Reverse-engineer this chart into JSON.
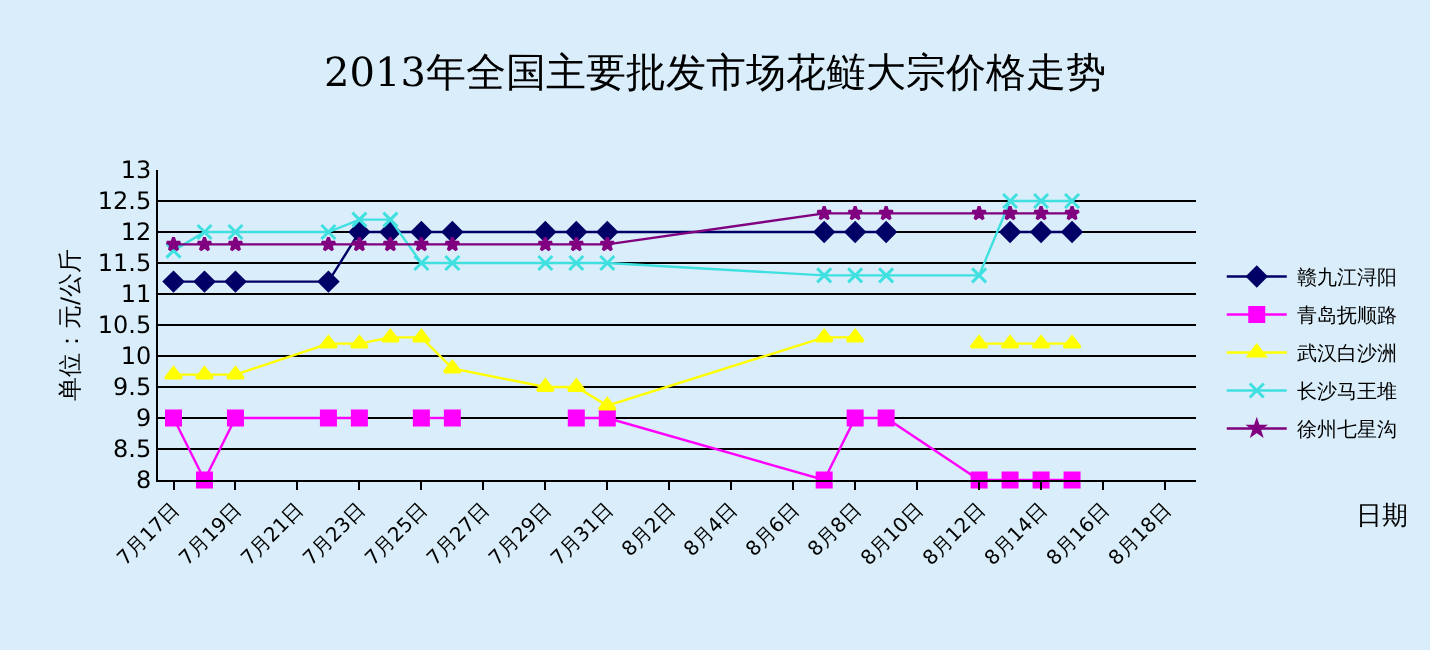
{
  "chart_data": {
    "type": "line",
    "title": "2013年全国主要批发市场花鲢大宗价格走势",
    "annotations": [
      "日期"
    ],
    "ylabel": "单位：元/公斤",
    "x": [
      "--07-17",
      "--07-18",
      "--07-19",
      "--07-22",
      "--07-23",
      "--07-24",
      "--07-25",
      "--07-26",
      "--07-29",
      "--07-30",
      "--07-31",
      "--08-07",
      "--08-08",
      "--08-09",
      "--08-12",
      "--08-13",
      "--08-14",
      "--08-15"
    ],
    "series": [
      {
        "name": "赣九江浔阳",
        "color": "#000066",
        "marker": "diamond",
        "values": [
          11.2,
          11.2,
          11.2,
          11.2,
          12,
          12,
          12,
          12,
          12,
          12,
          12,
          12,
          12,
          12,
          null,
          12,
          12,
          12
        ]
      },
      {
        "name": "青岛抚顺路",
        "color": "#ff00ff",
        "marker": "square",
        "values": [
          9,
          8,
          9,
          9,
          9,
          null,
          9,
          9,
          null,
          9,
          9,
          8,
          9,
          9,
          8,
          8,
          8,
          8
        ]
      },
      {
        "name": "武汉白沙洲",
        "color": "#ffff00",
        "marker": "triangle",
        "values": [
          9.7,
          9.7,
          9.7,
          10.2,
          10.2,
          10.3,
          10.3,
          9.8,
          9.5,
          9.5,
          9.2,
          10.3,
          10.3,
          null,
          10.2,
          10.2,
          10.2,
          10.2
        ]
      },
      {
        "name": "长沙马王堆",
        "color": "#40e0e0",
        "marker": "cross",
        "values": [
          11.7,
          12,
          12,
          12,
          12.2,
          12.2,
          11.5,
          11.5,
          11.5,
          11.5,
          11.5,
          11.3,
          11.3,
          11.3,
          11.3,
          12.5,
          12.5,
          12.5
        ]
      },
      {
        "name": "徐州七星沟",
        "color": "#800080",
        "marker": "star",
        "values": [
          11.8,
          11.8,
          11.8,
          11.8,
          11.8,
          11.8,
          11.8,
          11.8,
          11.8,
          11.8,
          11.8,
          12.3,
          12.3,
          12.3,
          12.3,
          12.3,
          12.3,
          12.3
        ]
      }
    ],
    "xlim": [
      "--07-16T12:00",
      "--08-19"
    ],
    "xticks": [
      {
        "value": "--07-17",
        "label": "7月17日"
      },
      {
        "value": "--07-19",
        "label": "7月19日"
      },
      {
        "value": "--07-21",
        "label": "7月21日"
      },
      {
        "value": "--07-23",
        "label": "7月23日"
      },
      {
        "value": "--07-25",
        "label": "7月25日"
      },
      {
        "value": "--07-27",
        "label": "7月27日"
      },
      {
        "value": "--07-29",
        "label": "7月29日"
      },
      {
        "value": "--07-31",
        "label": "7月31日"
      },
      {
        "value": "--08-02",
        "label": "8月2日"
      },
      {
        "value": "--08-04",
        "label": "8月4日"
      },
      {
        "value": "--08-06",
        "label": "8月6日"
      },
      {
        "value": "--08-08",
        "label": "8月8日"
      },
      {
        "value": "--08-10",
        "label": "8月10日"
      },
      {
        "value": "--08-12",
        "label": "8月12日"
      },
      {
        "value": "--08-14",
        "label": "8月14日"
      },
      {
        "value": "--08-16",
        "label": "8月16日"
      },
      {
        "value": "--08-18",
        "label": "8月18日"
      }
    ],
    "ylim": [
      8,
      13
    ],
    "yticks": [
      8,
      8.5,
      9,
      9.5,
      10,
      10.5,
      11,
      11.5,
      12,
      12.5,
      13
    ],
    "grid": "y",
    "legend": "right",
    "line_style": "solid"
  }
}
